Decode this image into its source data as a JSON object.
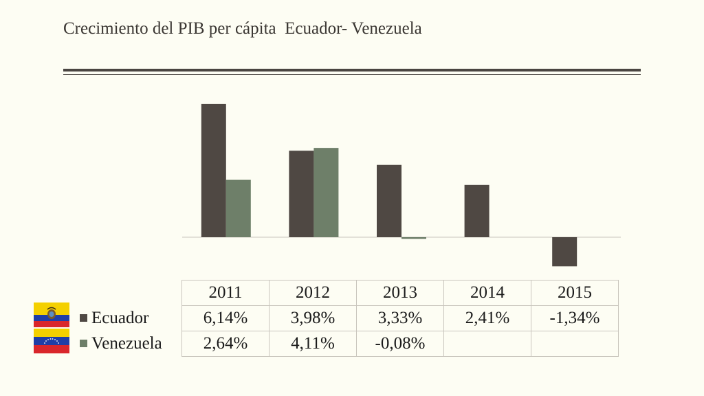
{
  "title": "Crecimiento del PIB per cápita  Ecuador- Venezuela",
  "colors": {
    "ecuador": "#4f4843",
    "venezuela": "#6e7f69",
    "background": "#fdfdf3"
  },
  "chart_data": {
    "type": "bar",
    "categories": [
      "2011",
      "2012",
      "2013",
      "2014",
      "2015"
    ],
    "series": [
      {
        "name": "Ecuador",
        "values": [
          6.14,
          3.98,
          3.33,
          2.41,
          -1.34
        ],
        "labels": [
          "6,14%",
          "3,98%",
          "3,33%",
          "2,41%",
          "-1,34%"
        ]
      },
      {
        "name": "Venezuela",
        "values": [
          2.64,
          4.11,
          -0.08,
          null,
          null
        ],
        "labels": [
          "2,64%",
          "4,11%",
          "-0,08%",
          "",
          ""
        ]
      }
    ],
    "legend": "data table below chart",
    "grid": false
  },
  "flags": [
    "ecuador-flag",
    "venezuela-flag"
  ]
}
